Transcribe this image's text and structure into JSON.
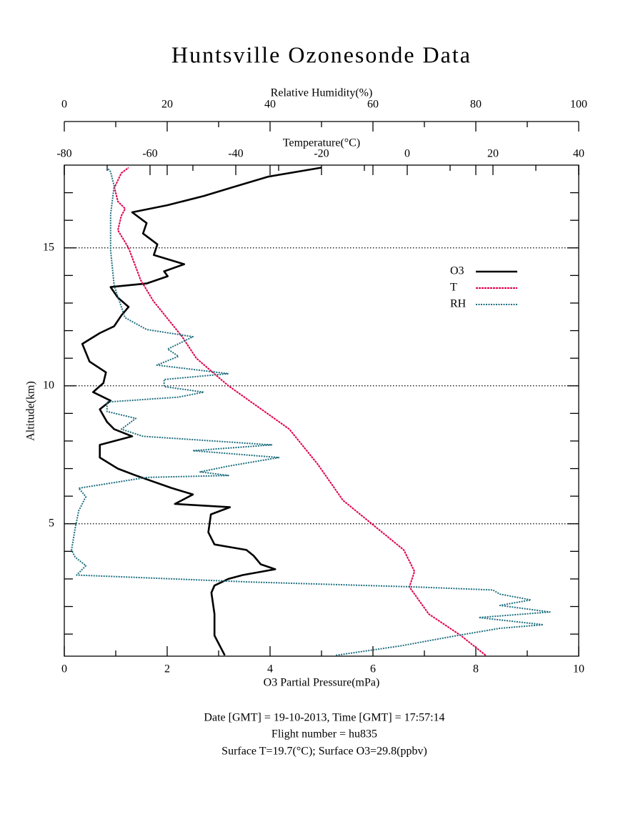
{
  "chart_data": {
    "type": "line",
    "title": "Huntsville Ozonesonde Data",
    "xlabel": "O3 Partial Pressure(mPa)",
    "ylabel": "Altitude(km)",
    "t_label": "Temperature(°C)",
    "rh_label": "Relative Humidity(%)",
    "footer": [
      "Date [GMT] = 19-10-2013,  Time [GMT] = 17:57:14",
      "Flight number = hu835",
      "Surface T=19.7(°C); Surface O3=29.8(ppbv)"
    ],
    "xlim": [
      0,
      10
    ],
    "xticks": [
      0,
      2,
      4,
      6,
      8,
      10
    ],
    "xminor": [
      1,
      3,
      5,
      7,
      9
    ],
    "tlim": [
      -80,
      40
    ],
    "tticks": [
      -80,
      -60,
      -40,
      -20,
      0,
      20,
      40
    ],
    "tminor": [
      -70,
      -50,
      -30,
      -10,
      10,
      30
    ],
    "rhlim": [
      0,
      100
    ],
    "rhticks": [
      0,
      20,
      40,
      60,
      80,
      100
    ],
    "rhminor": [
      10,
      30,
      50,
      70,
      90
    ],
    "ylim": [
      0.2,
      18
    ],
    "yticks": [
      5,
      10,
      15
    ],
    "yminor": [
      1,
      2,
      3,
      4,
      6,
      7,
      8,
      9,
      11,
      12,
      13,
      14,
      16,
      17
    ],
    "grid": true,
    "legend": "right",
    "series": [
      {
        "name": "O3",
        "color": "#000000",
        "axis": "x",
        "altitude": [
          0.23,
          0.95,
          1.73,
          2.5,
          2.76,
          3.0,
          3.14,
          3.35,
          3.53,
          3.84,
          4.05,
          4.25,
          4.69,
          5.34,
          5.6,
          5.72,
          6.06,
          6.3,
          6.75,
          7.0,
          7.4,
          7.86,
          8.17,
          8.43,
          8.69,
          9.15,
          9.46,
          9.77,
          10.1,
          10.49,
          10.88,
          11.52,
          11.91,
          12.16,
          12.55,
          12.86,
          13.2,
          13.58,
          13.71,
          13.97,
          14.15,
          14.41,
          14.74,
          15.13,
          15.52,
          15.9,
          16.29,
          16.55,
          16.88,
          17.19,
          17.58,
          17.91
        ],
        "values": [
          3.12,
          2.92,
          2.92,
          2.86,
          2.92,
          3.19,
          3.47,
          4.1,
          3.82,
          3.68,
          3.54,
          2.92,
          2.8,
          2.85,
          3.22,
          2.15,
          2.5,
          2.08,
          1.39,
          1.04,
          0.69,
          0.69,
          1.32,
          0.97,
          0.83,
          0.69,
          0.9,
          0.56,
          0.76,
          0.81,
          0.49,
          0.35,
          0.69,
          0.97,
          1.11,
          1.25,
          1.04,
          0.9,
          1.6,
          2.01,
          1.94,
          2.33,
          1.74,
          1.81,
          1.53,
          1.6,
          1.32,
          2.01,
          2.71,
          3.26,
          3.96,
          5.0
        ]
      },
      {
        "name": "T",
        "color": "#e0004a",
        "axis": "t",
        "altitude": [
          0.23,
          0.95,
          1.73,
          2.71,
          3.27,
          4.05,
          5.0,
          5.85,
          7.14,
          8.43,
          10.0,
          11.0,
          11.78,
          13.07,
          13.84,
          15.0,
          15.64,
          16.16,
          16.42,
          16.68,
          17.19,
          17.71,
          17.91
        ],
        "values": [
          18.3,
          12.5,
          5,
          0.5,
          1.7,
          -0.8,
          -8.3,
          -15,
          -20.8,
          -27.5,
          -41.7,
          -49.2,
          -52.5,
          -59.2,
          -62.2,
          -65,
          -67.5,
          -66.7,
          -65.8,
          -67.5,
          -68.3,
          -66.7,
          -65
        ]
      },
      {
        "name": "RH",
        "color": "#1f6f7f",
        "axis": "rh",
        "altitude": [
          0.23,
          0.57,
          0.95,
          1.21,
          1.34,
          1.6,
          1.8,
          2.04,
          2.24,
          2.45,
          2.6,
          2.71,
          2.89,
          3.14,
          3.48,
          3.79,
          4.05,
          4.82,
          5.47,
          5.98,
          6.29,
          6.68,
          6.75,
          6.88,
          7.09,
          7.4,
          7.65,
          7.86,
          8.17,
          8.43,
          8.82,
          9.07,
          9.41,
          9.59,
          9.77,
          9.97,
          10.23,
          10.44,
          10.75,
          11.07,
          11.33,
          11.78,
          12.04,
          12.47,
          12.86,
          13.63,
          14.92,
          16.21,
          17.24,
          17.76,
          17.91
        ],
        "values": [
          52.8,
          65.3,
          76.4,
          84.7,
          93.1,
          80.6,
          94.4,
          84.7,
          90.7,
          84.7,
          83.3,
          68,
          36,
          2.4,
          4.2,
          2.1,
          1.4,
          2.1,
          2.8,
          4.2,
          2.8,
          16,
          31.9,
          26.4,
          31.9,
          41.7,
          25,
          40.3,
          15.3,
          11.1,
          13.9,
          8.3,
          8.3,
          22.2,
          27.1,
          19.4,
          19.4,
          31.9,
          18,
          22.2,
          20.1,
          25,
          16,
          11.8,
          11.1,
          9.7,
          9,
          9,
          9.7,
          9,
          8.3
        ]
      }
    ]
  }
}
